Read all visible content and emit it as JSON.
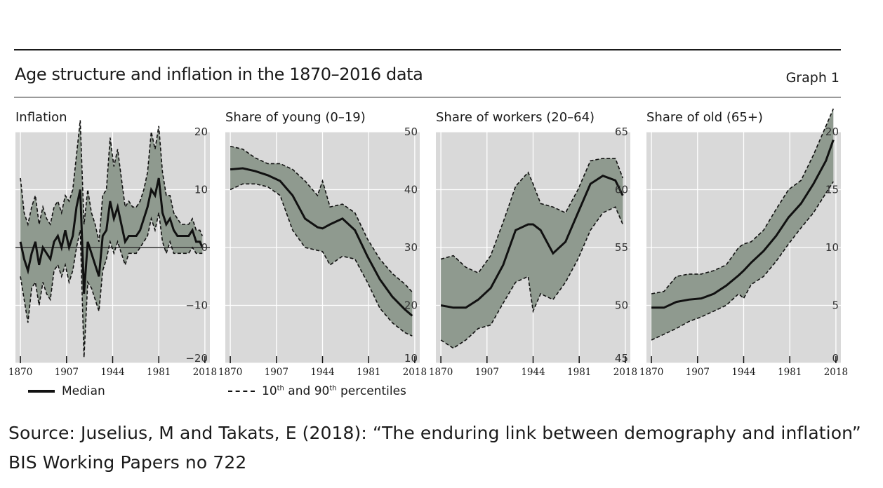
{
  "header": {
    "title": "Age structure and inflation in the 1870–2016 data",
    "graph_label": "Graph 1"
  },
  "legend": {
    "median": "Median",
    "percentiles_prefix": "10",
    "percentiles_sup1": "th",
    "percentiles_mid": " and 90",
    "percentiles_sup2": "th",
    "percentiles_suffix": " percentiles"
  },
  "source": {
    "line1": "Source: Juselius, M and Takats, E (2018): “The enduring link between demography and inflation”",
    "line2": "BIS Working Papers no 722"
  },
  "colors": {
    "panel_bg": "#d9d9d9",
    "band_fill": "#8f9a8f",
    "line": "#111111",
    "grid": "#ffffff"
  },
  "chart_data": [
    {
      "type": "line",
      "title": "Inflation",
      "x_ticks": [
        1870,
        1907,
        1944,
        1981,
        2018
      ],
      "xlim": [
        1866,
        2022
      ],
      "ylim": [
        -20,
        20
      ],
      "y_ticks": [
        -20,
        -10,
        0,
        10,
        20
      ],
      "zero_line": true,
      "series": [
        {
          "role": "median",
          "x": [
            1870,
            1873,
            1876,
            1879,
            1882,
            1885,
            1888,
            1891,
            1894,
            1897,
            1900,
            1903,
            1906,
            1909,
            1912,
            1915,
            1918,
            1921,
            1924,
            1927,
            1930,
            1933,
            1936,
            1939,
            1942,
            1945,
            1948,
            1951,
            1954,
            1957,
            1960,
            1963,
            1966,
            1969,
            1972,
            1975,
            1978,
            1981,
            1984,
            1987,
            1990,
            1993,
            1996,
            1999,
            2002,
            2005,
            2008,
            2011,
            2014,
            2016
          ],
          "y": [
            1,
            -2,
            -4,
            -1,
            1,
            -3,
            0,
            -1,
            -2,
            1,
            2,
            0,
            3,
            0,
            2,
            7,
            10,
            -8,
            1,
            -1,
            -3,
            -5,
            2,
            3,
            8,
            5,
            7,
            4,
            1,
            2,
            2,
            2,
            3,
            5,
            7,
            10,
            9,
            12,
            6,
            4,
            5,
            3,
            2,
            2,
            2,
            2,
            3,
            1,
            1,
            0
          ]
        },
        {
          "role": "p10",
          "x": [
            1870,
            1873,
            1876,
            1879,
            1882,
            1885,
            1888,
            1891,
            1894,
            1897,
            1900,
            1903,
            1906,
            1909,
            1912,
            1915,
            1918,
            1921,
            1924,
            1927,
            1930,
            1933,
            1936,
            1939,
            1942,
            1945,
            1948,
            1951,
            1954,
            1957,
            1960,
            1963,
            1966,
            1969,
            1972,
            1975,
            1978,
            1981,
            1984,
            1987,
            1990,
            1993,
            1996,
            1999,
            2002,
            2005,
            2008,
            2011,
            2014,
            2016
          ],
          "y": [
            -5,
            -9,
            -13,
            -7,
            -6,
            -10,
            -6,
            -8,
            -9,
            -4,
            -3,
            -5,
            -3,
            -6,
            -4,
            0,
            3,
            -19,
            -6,
            -7,
            -9,
            -11,
            -4,
            -2,
            1,
            -1,
            1,
            -1,
            -3,
            -1,
            -1,
            -1,
            0,
            1,
            2,
            5,
            3,
            6,
            1,
            -1,
            1,
            -1,
            -1,
            -1,
            -1,
            -1,
            0,
            -1,
            -1,
            -1
          ]
        },
        {
          "role": "p90",
          "x": [
            1870,
            1873,
            1876,
            1879,
            1882,
            1885,
            1888,
            1891,
            1894,
            1897,
            1900,
            1903,
            1906,
            1909,
            1912,
            1915,
            1918,
            1921,
            1924,
            1927,
            1930,
            1933,
            1936,
            1939,
            1942,
            1945,
            1948,
            1951,
            1954,
            1957,
            1960,
            1963,
            1966,
            1969,
            1972,
            1975,
            1978,
            1981,
            1984,
            1987,
            1990,
            1993,
            1996,
            1999,
            2002,
            2005,
            2008,
            2011,
            2014,
            2016
          ],
          "y": [
            12,
            6,
            4,
            7,
            9,
            4,
            7,
            5,
            4,
            7,
            8,
            6,
            9,
            8,
            10,
            16,
            22,
            4,
            10,
            6,
            4,
            1,
            9,
            10,
            19,
            14,
            17,
            12,
            7,
            8,
            7,
            7,
            8,
            10,
            13,
            20,
            17,
            21,
            13,
            9,
            9,
            6,
            5,
            4,
            4,
            4,
            5,
            3,
            3,
            2
          ]
        }
      ]
    },
    {
      "type": "area",
      "title": "Share of young (0–19)",
      "x_ticks": [
        1870,
        1907,
        1944,
        1981,
        2018
      ],
      "xlim": [
        1866,
        2022
      ],
      "ylim": [
        10,
        50
      ],
      "y_ticks": [
        10,
        20,
        30,
        40,
        50
      ],
      "series": [
        {
          "role": "median",
          "x": [
            1870,
            1880,
            1890,
            1900,
            1910,
            1920,
            1930,
            1940,
            1944,
            1950,
            1960,
            1970,
            1980,
            1990,
            2000,
            2010,
            2016
          ],
          "y": [
            43.5,
            43.7,
            43.2,
            42.5,
            41.5,
            39,
            35,
            33.5,
            33.3,
            34,
            35,
            33,
            28.5,
            24.5,
            21.5,
            19.3,
            18.2
          ]
        },
        {
          "role": "p10",
          "x": [
            1870,
            1880,
            1890,
            1900,
            1910,
            1920,
            1930,
            1940,
            1944,
            1950,
            1960,
            1970,
            1980,
            1990,
            2000,
            2010,
            2016
          ],
          "y": [
            40,
            41,
            41,
            40.5,
            39,
            33,
            30,
            29.5,
            29.3,
            27,
            28.5,
            28,
            24,
            19.5,
            17,
            15.3,
            14.7
          ]
        },
        {
          "role": "p90",
          "x": [
            1870,
            1880,
            1890,
            1900,
            1910,
            1920,
            1930,
            1940,
            1944,
            1950,
            1960,
            1970,
            1980,
            1990,
            2000,
            2010,
            2016
          ],
          "y": [
            47.5,
            47,
            45.5,
            44.5,
            44.5,
            43.5,
            41.5,
            39,
            41.5,
            37,
            37.5,
            36,
            31.5,
            28,
            25.5,
            23.7,
            22.3
          ]
        }
      ]
    },
    {
      "type": "area",
      "title": "Share of workers (20–64)",
      "x_ticks": [
        1870,
        1907,
        1944,
        1981,
        2018
      ],
      "xlim": [
        1866,
        2022
      ],
      "ylim": [
        45,
        65
      ],
      "y_ticks": [
        45,
        50,
        55,
        60,
        65
      ],
      "series": [
        {
          "role": "median",
          "x": [
            1870,
            1880,
            1890,
            1900,
            1910,
            1920,
            1930,
            1940,
            1944,
            1950,
            1960,
            1970,
            1980,
            1990,
            2000,
            2010,
            2016
          ],
          "y": [
            50,
            49.8,
            49.8,
            50.5,
            51.5,
            53.5,
            56.5,
            57,
            57,
            56.5,
            54.5,
            55.5,
            58,
            60.5,
            61.2,
            60.8,
            59.5
          ]
        },
        {
          "role": "p10",
          "x": [
            1870,
            1880,
            1890,
            1900,
            1910,
            1920,
            1930,
            1940,
            1944,
            1950,
            1960,
            1970,
            1980,
            1990,
            2000,
            2010,
            2016
          ],
          "y": [
            47,
            46.3,
            47,
            48,
            48.3,
            50.2,
            52,
            52.5,
            49.5,
            51,
            50.5,
            52,
            54,
            56.5,
            58,
            58.5,
            57
          ]
        },
        {
          "role": "p90",
          "x": [
            1870,
            1880,
            1890,
            1900,
            1910,
            1920,
            1930,
            1940,
            1944,
            1950,
            1960,
            1970,
            1980,
            1990,
            2000,
            2010,
            2016
          ],
          "y": [
            54,
            54.3,
            53.3,
            52.8,
            54.3,
            57.2,
            60.3,
            61.5,
            60.5,
            58.8,
            58.5,
            58,
            60,
            62.5,
            62.7,
            62.7,
            61
          ]
        }
      ]
    },
    {
      "type": "area",
      "title": "Share of old (65+)",
      "x_ticks": [
        1870,
        1907,
        1944,
        1981,
        2018
      ],
      "xlim": [
        1866,
        2022
      ],
      "ylim": [
        0,
        20
      ],
      "y_ticks": [
        0,
        5,
        10,
        15,
        20
      ],
      "series": [
        {
          "role": "median",
          "x": [
            1870,
            1880,
            1890,
            1900,
            1910,
            1920,
            1930,
            1940,
            1944,
            1950,
            1960,
            1970,
            1980,
            1990,
            2000,
            2010,
            2016
          ],
          "y": [
            4.8,
            4.8,
            5.3,
            5.5,
            5.6,
            6,
            6.7,
            7.6,
            8,
            8.7,
            9.7,
            11,
            12.6,
            13.8,
            15.5,
            17.5,
            19.3
          ]
        },
        {
          "role": "p10",
          "x": [
            1870,
            1880,
            1890,
            1900,
            1910,
            1920,
            1930,
            1940,
            1944,
            1950,
            1960,
            1970,
            1980,
            1990,
            2000,
            2010,
            2016
          ],
          "y": [
            2,
            2.5,
            3,
            3.6,
            4,
            4.5,
            5,
            6,
            5.6,
            6.8,
            7.5,
            8.8,
            10.3,
            11.7,
            13,
            14.7,
            15.7
          ]
        },
        {
          "role": "p90",
          "x": [
            1870,
            1880,
            1890,
            1900,
            1910,
            1920,
            1930,
            1940,
            1944,
            1950,
            1960,
            1970,
            1980,
            1990,
            2000,
            2010,
            2016
          ],
          "y": [
            6,
            6.2,
            7.5,
            7.7,
            7.7,
            8,
            8.5,
            10,
            10.3,
            10.5,
            11.5,
            13.3,
            15,
            15.8,
            18,
            20.5,
            22
          ]
        }
      ]
    }
  ]
}
